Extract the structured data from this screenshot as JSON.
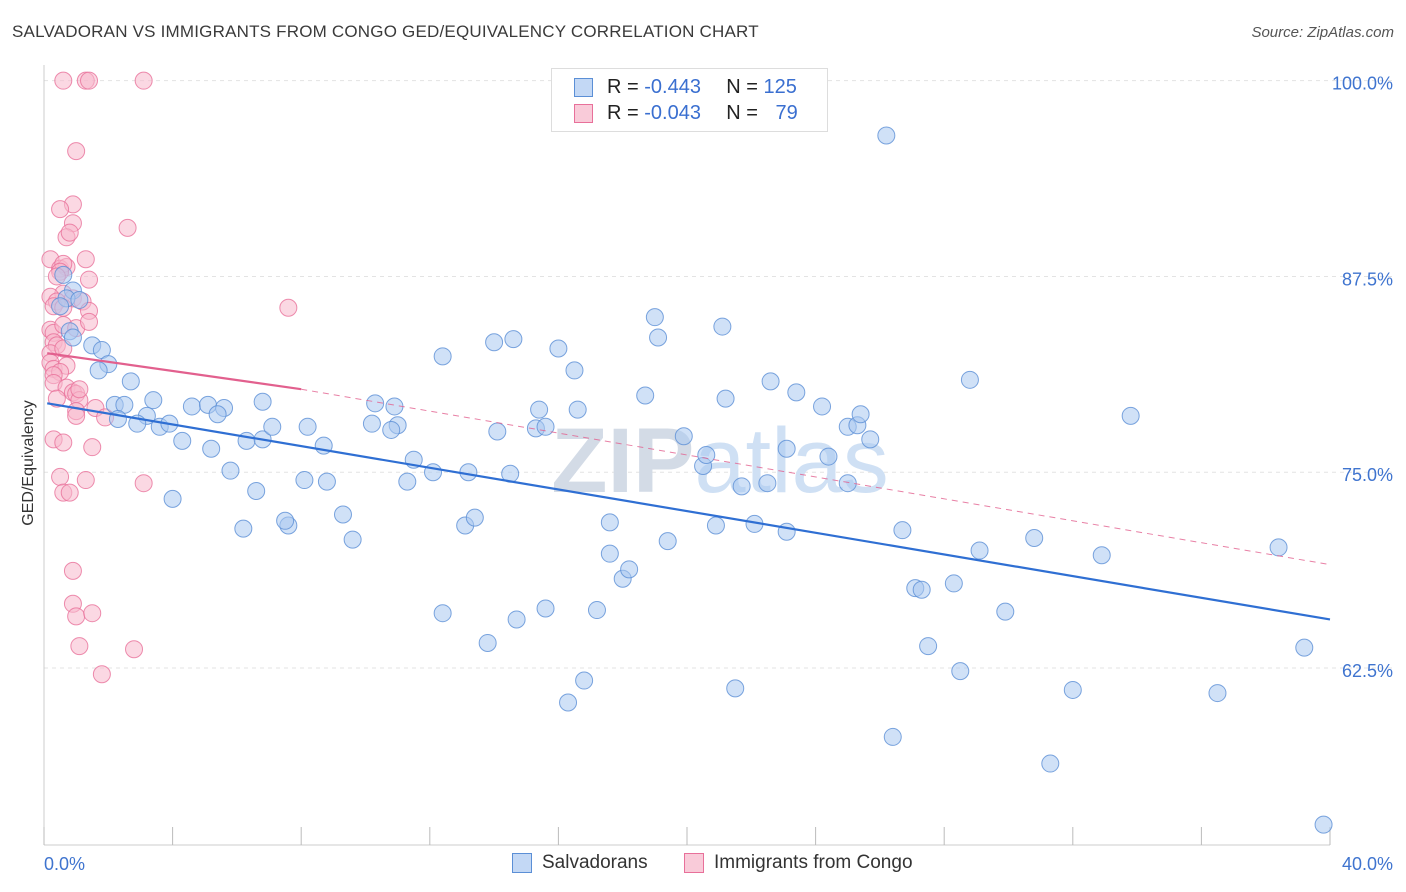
{
  "title": "SALVADORAN VS IMMIGRANTS FROM CONGO GED/EQUIVALENCY CORRELATION CHART",
  "source": "Source: ZipAtlas.com",
  "watermark": "ZIPatlas",
  "legend": {
    "r_label": "R =",
    "n_label": "N =",
    "rows": [
      {
        "r": "-0.443",
        "n": "125"
      },
      {
        "r": "-0.043",
        "n": "79"
      }
    ]
  },
  "colors": {
    "blue_fill": "#a9c8f0",
    "blue_stroke": "#5b8fd6",
    "blue_line": "#2f6fd3",
    "pink_fill": "#f7b8cc",
    "pink_stroke": "#e8709a",
    "pink_line": "#e2608e",
    "axis_label": "#3f74cf",
    "grid": "#e3e3e3"
  },
  "chart_data": {
    "type": "scatter",
    "title": "SALVADORAN VS IMMIGRANTS FROM CONGO GED/EQUIVALENCY CORRELATION CHART",
    "xlabel": "",
    "ylabel": "GED/Equivalency",
    "xlim": [
      0,
      40
    ],
    "ylim": [
      51.2,
      101.0
    ],
    "x_tick_labels": [
      "0.0%",
      "40.0%"
    ],
    "y_ticks": [
      62.5,
      75.0,
      87.5,
      100.0
    ],
    "y_tick_labels": [
      "62.5%",
      "75.0%",
      "87.5%",
      "100.0%"
    ],
    "grid": "horizontal dashed",
    "legend_position": "top-center",
    "series": [
      {
        "name": "Salvadorans",
        "color": "#a9c8f0",
        "trend": {
          "x0": 0.1,
          "y0": 79.4,
          "x1": 40.0,
          "y1": 65.6,
          "style": "solid"
        },
        "points": [
          [
            0.6,
            87.6
          ],
          [
            0.9,
            86.6
          ],
          [
            0.7,
            86.1
          ],
          [
            1.1,
            86.0
          ],
          [
            0.8,
            84.0
          ],
          [
            0.5,
            85.6
          ],
          [
            0.9,
            83.6
          ],
          [
            1.5,
            83.1
          ],
          [
            1.8,
            82.8
          ],
          [
            2.0,
            81.9
          ],
          [
            1.7,
            81.5
          ],
          [
            2.7,
            80.8
          ],
          [
            2.2,
            79.3
          ],
          [
            2.5,
            79.3
          ],
          [
            3.4,
            79.6
          ],
          [
            4.6,
            79.2
          ],
          [
            5.1,
            79.3
          ],
          [
            5.6,
            79.1
          ],
          [
            3.2,
            78.6
          ],
          [
            2.3,
            78.4
          ],
          [
            2.9,
            78.1
          ],
          [
            3.6,
            77.9
          ],
          [
            3.9,
            78.1
          ],
          [
            6.8,
            79.5
          ],
          [
            4.3,
            77.0
          ],
          [
            5.2,
            76.5
          ],
          [
            6.3,
            77.0
          ],
          [
            6.8,
            77.1
          ],
          [
            5.4,
            78.7
          ],
          [
            7.1,
            77.9
          ],
          [
            8.7,
            76.7
          ],
          [
            8.2,
            77.9
          ],
          [
            5.8,
            75.1
          ],
          [
            8.1,
            74.5
          ],
          [
            8.8,
            74.4
          ],
          [
            4.0,
            73.3
          ],
          [
            6.6,
            73.8
          ],
          [
            7.6,
            71.6
          ],
          [
            6.2,
            71.4
          ],
          [
            7.5,
            71.9
          ],
          [
            9.3,
            72.3
          ],
          [
            9.6,
            70.7
          ],
          [
            10.2,
            78.1
          ],
          [
            11.0,
            78.0
          ],
          [
            10.9,
            79.2
          ],
          [
            10.3,
            79.4
          ],
          [
            10.8,
            77.7
          ],
          [
            11.3,
            74.4
          ],
          [
            11.5,
            75.8
          ],
          [
            12.1,
            75.0
          ],
          [
            12.4,
            82.4
          ],
          [
            13.2,
            75.0
          ],
          [
            13.1,
            71.6
          ],
          [
            13.4,
            72.1
          ],
          [
            14.1,
            77.6
          ],
          [
            14.0,
            83.3
          ],
          [
            14.6,
            83.5
          ],
          [
            14.5,
            74.9
          ],
          [
            15.4,
            79.0
          ],
          [
            15.3,
            77.8
          ],
          [
            15.6,
            77.9
          ],
          [
            16.0,
            82.9
          ],
          [
            16.5,
            81.5
          ],
          [
            16.6,
            79.0
          ],
          [
            12.4,
            66.0
          ],
          [
            13.8,
            64.1
          ],
          [
            14.7,
            65.6
          ],
          [
            15.6,
            66.3
          ],
          [
            16.3,
            60.3
          ],
          [
            17.2,
            66.2
          ],
          [
            16.8,
            61.7
          ],
          [
            17.6,
            71.8
          ],
          [
            17.6,
            69.8
          ],
          [
            18.0,
            68.2
          ],
          [
            18.2,
            68.8
          ],
          [
            18.7,
            79.9
          ],
          [
            19.0,
            84.9
          ],
          [
            19.1,
            83.6
          ],
          [
            19.4,
            70.6
          ],
          [
            19.9,
            77.3
          ],
          [
            20.5,
            75.4
          ],
          [
            20.6,
            76.1
          ],
          [
            20.9,
            71.6
          ],
          [
            21.1,
            84.3
          ],
          [
            21.2,
            79.7
          ],
          [
            21.5,
            61.2
          ],
          [
            21.7,
            74.1
          ],
          [
            22.1,
            71.7
          ],
          [
            22.5,
            74.3
          ],
          [
            22.6,
            80.8
          ],
          [
            23.1,
            71.2
          ],
          [
            23.1,
            76.5
          ],
          [
            23.4,
            80.1
          ],
          [
            24.2,
            79.2
          ],
          [
            24.4,
            76.0
          ],
          [
            25.0,
            77.9
          ],
          [
            25.3,
            78.0
          ],
          [
            25.4,
            78.7
          ],
          [
            25.7,
            77.1
          ],
          [
            25.0,
            74.3
          ],
          [
            26.2,
            96.5
          ],
          [
            26.4,
            58.1
          ],
          [
            26.7,
            71.3
          ],
          [
            27.1,
            67.6
          ],
          [
            27.3,
            67.5
          ],
          [
            27.5,
            63.9
          ],
          [
            28.3,
            67.9
          ],
          [
            28.5,
            62.3
          ],
          [
            28.8,
            80.9
          ],
          [
            29.1,
            70.0
          ],
          [
            29.9,
            66.1
          ],
          [
            30.8,
            70.8
          ],
          [
            31.3,
            56.4
          ],
          [
            32.0,
            61.1
          ],
          [
            32.9,
            69.7
          ],
          [
            33.8,
            78.6
          ],
          [
            36.5,
            60.9
          ],
          [
            38.4,
            70.2
          ],
          [
            39.2,
            63.8
          ],
          [
            39.8,
            52.5
          ]
        ]
      },
      {
        "name": "Immigrants from Congo",
        "color": "#f7b8cc",
        "trend": {
          "x0": 0.1,
          "y0": 82.6,
          "x1": 8.0,
          "y1": 80.3,
          "style": "solid",
          "dashed_to": {
            "x": 40.0,
            "y": 69.1
          }
        },
        "points": [
          [
            0.6,
            100.0
          ],
          [
            1.3,
            100.0
          ],
          [
            1.4,
            100.0
          ],
          [
            3.1,
            100.0
          ],
          [
            1.0,
            95.5
          ],
          [
            0.9,
            92.1
          ],
          [
            0.5,
            91.8
          ],
          [
            0.9,
            90.9
          ],
          [
            0.7,
            90.0
          ],
          [
            0.8,
            90.3
          ],
          [
            2.6,
            90.6
          ],
          [
            0.2,
            88.6
          ],
          [
            0.5,
            88.0
          ],
          [
            0.7,
            88.1
          ],
          [
            0.6,
            88.3
          ],
          [
            1.3,
            88.6
          ],
          [
            0.5,
            87.8
          ],
          [
            0.4,
            87.5
          ],
          [
            1.4,
            87.3
          ],
          [
            0.6,
            86.4
          ],
          [
            0.2,
            86.2
          ],
          [
            0.4,
            85.9
          ],
          [
            0.9,
            86.1
          ],
          [
            0.3,
            85.6
          ],
          [
            0.6,
            85.5
          ],
          [
            1.2,
            85.9
          ],
          [
            1.4,
            85.3
          ],
          [
            7.6,
            85.5
          ],
          [
            0.2,
            84.1
          ],
          [
            0.3,
            83.9
          ],
          [
            0.6,
            84.4
          ],
          [
            1.0,
            84.2
          ],
          [
            1.4,
            84.6
          ],
          [
            0.3,
            83.3
          ],
          [
            0.4,
            83.1
          ],
          [
            0.2,
            82.6
          ],
          [
            0.6,
            82.9
          ],
          [
            0.2,
            82.0
          ],
          [
            0.3,
            81.6
          ],
          [
            0.7,
            81.8
          ],
          [
            0.5,
            81.4
          ],
          [
            0.3,
            81.2
          ],
          [
            0.3,
            80.7
          ],
          [
            0.7,
            80.4
          ],
          [
            0.9,
            80.1
          ],
          [
            1.0,
            80.0
          ],
          [
            1.1,
            79.6
          ],
          [
            1.1,
            80.3
          ],
          [
            0.4,
            79.7
          ],
          [
            1.0,
            78.9
          ],
          [
            1.0,
            78.6
          ],
          [
            1.6,
            79.1
          ],
          [
            1.9,
            78.5
          ],
          [
            0.3,
            77.1
          ],
          [
            0.6,
            76.9
          ],
          [
            1.5,
            76.6
          ],
          [
            0.5,
            74.7
          ],
          [
            1.3,
            74.5
          ],
          [
            0.6,
            73.7
          ],
          [
            0.8,
            73.7
          ],
          [
            3.1,
            74.3
          ],
          [
            0.9,
            68.7
          ],
          [
            0.9,
            66.6
          ],
          [
            1.0,
            65.8
          ],
          [
            1.5,
            66.0
          ],
          [
            1.1,
            63.9
          ],
          [
            2.8,
            63.7
          ],
          [
            1.8,
            62.1
          ]
        ]
      }
    ]
  },
  "bottom_legend": [
    "Salvadorans",
    "Immigrants from Congo"
  ]
}
